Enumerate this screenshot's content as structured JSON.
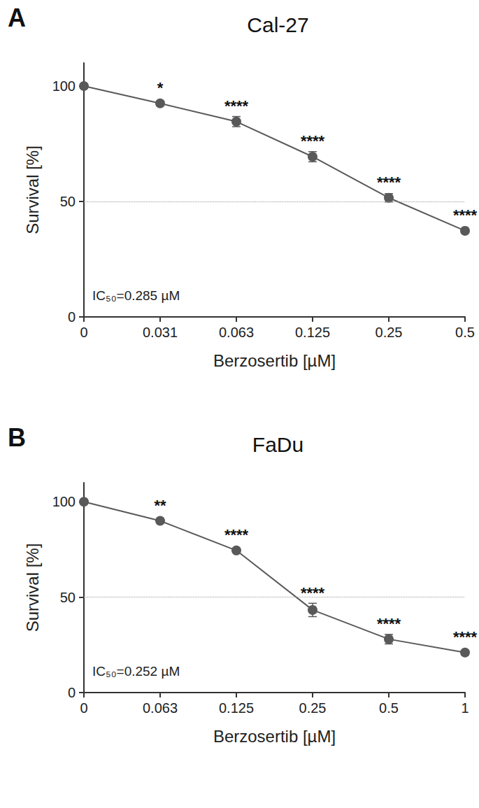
{
  "chart_data": [
    {
      "type": "line",
      "panel": "A",
      "title": "Cal-27",
      "x_label": "Berzosertib [µM]",
      "y_label": "Survival [%]",
      "categories": [
        "0",
        "0.031",
        "0.063",
        "0.125",
        "0.25",
        "0.5"
      ],
      "values": [
        100,
        92.5,
        84.6,
        69.4,
        51.6,
        37.3
      ],
      "errors": [
        0,
        0.6,
        2.2,
        2.2,
        1.8,
        0.8
      ],
      "significance": [
        null,
        "*",
        "****",
        "****",
        "****",
        "****"
      ],
      "annotation": "IC₅₀=0.285 µM",
      "reference_line": 50,
      "color": "#595959",
      "marker": "circle",
      "ylim": [
        0,
        110
      ],
      "yticks": [
        0,
        50,
        100
      ],
      "grid": false
    },
    {
      "type": "line",
      "panel": "B",
      "title": "FaDu",
      "x_label": "Berzosertib [µM]",
      "y_label": "Survival [%]",
      "categories": [
        "0",
        "0.063",
        "0.125",
        "0.25",
        "0.5",
        "1"
      ],
      "values": [
        100,
        90,
        74.5,
        43.3,
        28,
        21
      ],
      "errors": [
        0,
        0.6,
        0.6,
        3.5,
        2.5,
        1
      ],
      "significance": [
        null,
        "**",
        "****",
        "****",
        "****",
        "****"
      ],
      "annotation": "IC₅₀=0.252 µM",
      "reference_line": 50,
      "color": "#595959",
      "marker": "circle",
      "ylim": [
        0,
        110
      ],
      "yticks": [
        0,
        50,
        100
      ],
      "grid": false
    }
  ]
}
